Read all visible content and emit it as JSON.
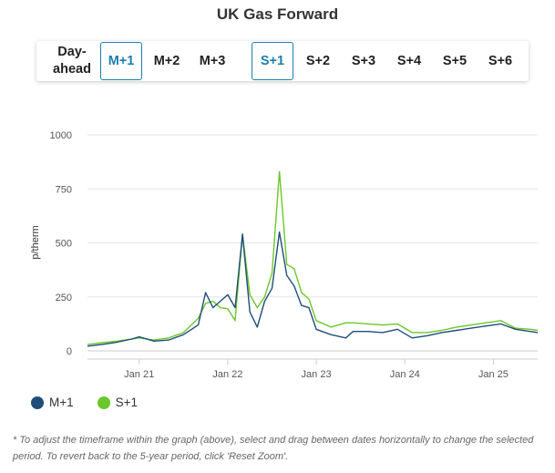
{
  "title": "UK Gas Forward",
  "tabs": [
    {
      "label": "Day-ahead",
      "active": false
    },
    {
      "label": "M+1",
      "active": true
    },
    {
      "label": "M+2",
      "active": false
    },
    {
      "label": "M+3",
      "active": false
    },
    {
      "label": "S+1",
      "active": true
    },
    {
      "label": "S+2",
      "active": false
    },
    {
      "label": "S+3",
      "active": false
    },
    {
      "label": "S+4",
      "active": false
    },
    {
      "label": "S+5",
      "active": false
    },
    {
      "label": "S+6",
      "active": false
    }
  ],
  "legend": [
    {
      "name": "M+1",
      "color": "#1f4e79"
    },
    {
      "name": "S+1",
      "color": "#6cc72c"
    }
  ],
  "footnote": "* To adjust the timeframe within the graph (above), select and drag between dates horizontally to change the selected period. To revert back to the 5-year period, click 'Reset Zoom'.",
  "chart_data": {
    "type": "line",
    "ylabel": "p/therm",
    "ylim": [
      0,
      1000
    ],
    "yticks": [
      0,
      250,
      500,
      750,
      1000
    ],
    "xticks": [
      "Jan 21",
      "Jan 22",
      "Jan 23",
      "Jan 24",
      "Jan 25"
    ],
    "xlim": [
      "2020-06",
      "2025-07"
    ],
    "grid": "horizontal",
    "legend_position": "bottom-left",
    "series": [
      {
        "name": "M+1",
        "color": "#1f4e79",
        "x": [
          "2020-06",
          "2020-08",
          "2020-10",
          "2020-12",
          "2021-01",
          "2021-03",
          "2021-05",
          "2021-07",
          "2021-09",
          "2021-10",
          "2021-11",
          "2021-12",
          "2022-01",
          "2022-02",
          "2022-03",
          "2022-04",
          "2022-05",
          "2022-06",
          "2022-07",
          "2022-08",
          "2022-09",
          "2022-10",
          "2022-11",
          "2022-12",
          "2023-01",
          "2023-03",
          "2023-05",
          "2023-06",
          "2023-08",
          "2023-10",
          "2023-12",
          "2024-02",
          "2024-04",
          "2024-06",
          "2024-08",
          "2024-10",
          "2024-12",
          "2025-02",
          "2025-04",
          "2025-06",
          "2025-07"
        ],
        "values": [
          22,
          30,
          40,
          55,
          65,
          45,
          50,
          75,
          120,
          270,
          200,
          230,
          260,
          200,
          540,
          180,
          110,
          230,
          290,
          550,
          350,
          300,
          210,
          200,
          100,
          75,
          60,
          90,
          90,
          85,
          100,
          60,
          70,
          85,
          95,
          105,
          115,
          125,
          100,
          90,
          85
        ]
      },
      {
        "name": "S+1",
        "color": "#6cc72c",
        "x": [
          "2020-06",
          "2020-08",
          "2020-10",
          "2020-12",
          "2021-01",
          "2021-03",
          "2021-05",
          "2021-07",
          "2021-09",
          "2021-10",
          "2021-11",
          "2021-12",
          "2022-01",
          "2022-02",
          "2022-03",
          "2022-04",
          "2022-05",
          "2022-06",
          "2022-07",
          "2022-08",
          "2022-09",
          "2022-10",
          "2022-11",
          "2022-12",
          "2023-01",
          "2023-03",
          "2023-05",
          "2023-06",
          "2023-08",
          "2023-10",
          "2023-12",
          "2024-02",
          "2024-04",
          "2024-06",
          "2024-08",
          "2024-10",
          "2024-12",
          "2025-02",
          "2025-04",
          "2025-06",
          "2025-07"
        ],
        "values": [
          30,
          38,
          45,
          55,
          60,
          50,
          60,
          85,
          150,
          220,
          230,
          200,
          195,
          140,
          540,
          260,
          200,
          250,
          360,
          830,
          400,
          380,
          270,
          240,
          140,
          110,
          130,
          130,
          125,
          120,
          125,
          85,
          85,
          95,
          110,
          120,
          130,
          140,
          105,
          100,
          95
        ]
      }
    ]
  }
}
